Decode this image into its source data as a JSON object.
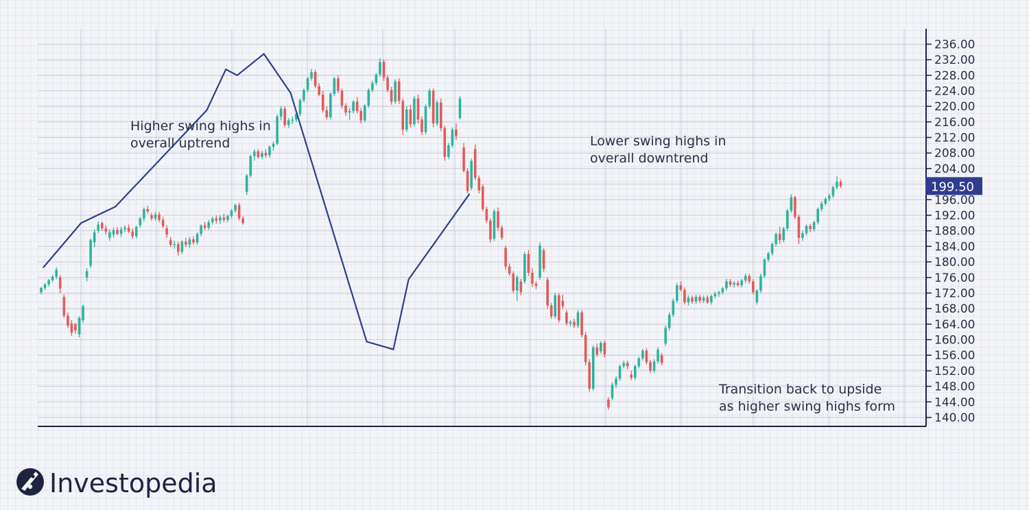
{
  "chart_data": {
    "type": "candlestick",
    "y_axis": {
      "range": [
        137,
        239
      ],
      "ticks": [
        "236.00",
        "232.00",
        "228.00",
        "224.00",
        "220.00",
        "216.00",
        "212.00",
        "208.00",
        "204.00",
        "200.00",
        "196.00",
        "192.00",
        "188.00",
        "184.00",
        "180.00",
        "176.00",
        "172.00",
        "168.00",
        "164.00",
        "160.00",
        "156.00",
        "152.00",
        "148.00",
        "144.00",
        "140.00"
      ],
      "position": "right"
    },
    "grid": true,
    "colors": {
      "up": "#2fb39d",
      "down": "#e15b5b",
      "trendline": "#2e3d8f",
      "price_tag": "#2e3d8f",
      "axis": "#1f2340"
    },
    "last_price": "199.50",
    "annotations": [
      {
        "id": "uptrend",
        "lines": [
          "Higher swing highs in",
          "overall uptrend"
        ]
      },
      {
        "id": "downtrend",
        "lines": [
          "Lower swing highs in",
          "overall downtrend"
        ]
      },
      {
        "id": "transition",
        "lines": [
          "Transition back to upside",
          "as higher swing highs form"
        ]
      }
    ],
    "trendlines": [
      {
        "name": "uptrend",
        "points": [
          [
            0.5,
            178.5
          ],
          [
            10.5,
            190.0
          ],
          [
            19.5,
            194.2
          ],
          [
            43.5,
            219.0
          ],
          [
            48.5,
            229.5
          ],
          [
            51.5,
            228.0
          ],
          [
            58.5,
            233.5
          ],
          [
            65.5,
            223.5
          ],
          [
            85.5,
            159.5
          ],
          [
            92.5,
            157.5
          ],
          [
            96.5,
            175.5
          ]
        ]
      },
      {
        "name": "transition",
        "points": [
          [
            96.5,
            175.5
          ],
          [
            112.5,
            197.5
          ]
        ]
      }
    ],
    "ohlc": [
      [
        172.2,
        173.6,
        171.6,
        173.3
      ],
      [
        173.3,
        174.6,
        172.8,
        174.2
      ],
      [
        174.2,
        175.6,
        173.6,
        175.3
      ],
      [
        175.3,
        176.6,
        174.8,
        176.2
      ],
      [
        176.2,
        178.6,
        175.6,
        178.0
      ],
      [
        176.0,
        176.6,
        172.0,
        173.2
      ],
      [
        171.0,
        171.6,
        165.6,
        166.2
      ],
      [
        166.2,
        167.0,
        163.0,
        163.6
      ],
      [
        164.2,
        165.0,
        161.0,
        161.8
      ],
      [
        164.0,
        164.4,
        161.6,
        162.4
      ],
      [
        161.4,
        166.0,
        160.6,
        165.6
      ],
      [
        165.0,
        169.0,
        164.4,
        168.6
      ],
      [
        176.0,
        178.4,
        175.0,
        177.6
      ],
      [
        179.0,
        186.0,
        178.4,
        185.6
      ],
      [
        185.0,
        188.4,
        183.8,
        187.6
      ],
      [
        188.0,
        190.4,
        187.4,
        189.6
      ],
      [
        190.0,
        190.4,
        188.0,
        188.6
      ],
      [
        188.6,
        189.4,
        187.0,
        187.8
      ],
      [
        186.2,
        188.4,
        185.4,
        187.6
      ],
      [
        187.0,
        188.8,
        186.2,
        188.2
      ],
      [
        188.2,
        189.0,
        186.8,
        187.2
      ],
      [
        187.2,
        189.0,
        186.4,
        188.4
      ],
      [
        188.4,
        189.4,
        187.6,
        188.8
      ],
      [
        188.8,
        189.6,
        187.4,
        187.8
      ],
      [
        187.8,
        188.6,
        186.0,
        186.6
      ],
      [
        186.6,
        189.4,
        186.0,
        189.0
      ],
      [
        189.4,
        191.6,
        188.8,
        191.2
      ],
      [
        191.2,
        194.0,
        190.4,
        193.6
      ],
      [
        193.6,
        194.4,
        192.4,
        193.0
      ],
      [
        192.0,
        192.6,
        190.6,
        191.2
      ],
      [
        191.2,
        192.8,
        190.6,
        192.2
      ],
      [
        192.2,
        192.8,
        190.2,
        190.8
      ],
      [
        190.8,
        191.6,
        188.6,
        189.2
      ],
      [
        188.6,
        189.4,
        186.2,
        187.0
      ],
      [
        185.6,
        186.4,
        183.8,
        184.4
      ],
      [
        184.4,
        185.4,
        183.4,
        184.6
      ],
      [
        184.6,
        185.2,
        181.6,
        182.6
      ],
      [
        182.6,
        185.6,
        182.0,
        185.2
      ],
      [
        185.2,
        186.2,
        183.8,
        184.4
      ],
      [
        184.4,
        186.4,
        183.6,
        185.8
      ],
      [
        185.8,
        186.6,
        184.4,
        185.0
      ],
      [
        185.0,
        187.6,
        184.4,
        187.2
      ],
      [
        187.2,
        189.6,
        186.6,
        189.4
      ],
      [
        189.4,
        190.2,
        188.2,
        188.8
      ],
      [
        188.8,
        190.8,
        188.2,
        190.2
      ],
      [
        190.2,
        191.6,
        189.6,
        191.2
      ],
      [
        191.2,
        192.0,
        189.8,
        190.6
      ],
      [
        190.6,
        192.0,
        189.8,
        191.4
      ],
      [
        191.4,
        192.4,
        190.2,
        190.8
      ],
      [
        190.8,
        192.2,
        190.2,
        191.8
      ],
      [
        191.8,
        193.6,
        191.2,
        193.2
      ],
      [
        193.2,
        195.0,
        192.6,
        194.6
      ],
      [
        194.6,
        195.2,
        190.6,
        191.2
      ],
      [
        191.2,
        191.8,
        189.6,
        190.0
      ],
      [
        198.0,
        202.6,
        197.2,
        202.2
      ],
      [
        202.2,
        207.6,
        201.6,
        207.2
      ],
      [
        207.2,
        209.0,
        206.0,
        208.4
      ],
      [
        208.4,
        209.0,
        206.6,
        207.0
      ],
      [
        207.0,
        208.6,
        206.4,
        208.0
      ],
      [
        208.0,
        209.0,
        206.8,
        207.4
      ],
      [
        207.4,
        210.0,
        206.8,
        209.6
      ],
      [
        209.6,
        211.0,
        208.6,
        210.4
      ],
      [
        210.4,
        218.0,
        210.0,
        217.4
      ],
      [
        217.4,
        220.0,
        216.4,
        219.4
      ],
      [
        219.4,
        220.0,
        214.6,
        215.2
      ],
      [
        215.2,
        217.0,
        214.4,
        216.4
      ],
      [
        216.4,
        217.4,
        215.4,
        216.6
      ],
      [
        216.6,
        218.6,
        216.0,
        218.0
      ],
      [
        218.0,
        222.0,
        217.4,
        221.6
      ],
      [
        221.6,
        224.6,
        221.0,
        224.2
      ],
      [
        224.2,
        227.6,
        223.6,
        227.2
      ],
      [
        227.2,
        229.6,
        226.6,
        228.8
      ],
      [
        228.8,
        229.4,
        224.6,
        225.2
      ],
      [
        225.2,
        226.0,
        222.6,
        223.0
      ],
      [
        223.0,
        224.0,
        218.4,
        219.0
      ],
      [
        219.0,
        220.0,
        216.6,
        217.2
      ],
      [
        217.2,
        223.6,
        216.6,
        223.2
      ],
      [
        223.2,
        227.6,
        222.6,
        227.2
      ],
      [
        227.2,
        228.0,
        223.4,
        224.0
      ],
      [
        224.0,
        224.6,
        219.4,
        220.2
      ],
      [
        220.2,
        220.8,
        217.6,
        218.4
      ],
      [
        218.4,
        219.6,
        216.4,
        218.8
      ],
      [
        218.8,
        221.6,
        218.2,
        221.2
      ],
      [
        221.2,
        222.4,
        218.2,
        218.8
      ],
      [
        218.8,
        219.6,
        215.6,
        216.4
      ],
      [
        216.4,
        220.6,
        216.0,
        220.2
      ],
      [
        220.2,
        224.6,
        219.6,
        224.2
      ],
      [
        224.2,
        226.6,
        223.6,
        226.0
      ],
      [
        226.0,
        228.6,
        225.4,
        228.2
      ],
      [
        228.2,
        232.4,
        227.6,
        231.4
      ],
      [
        231.4,
        232.0,
        226.6,
        227.4
      ],
      [
        227.4,
        228.0,
        223.6,
        224.2
      ],
      [
        224.2,
        225.0,
        220.4,
        221.2
      ],
      [
        221.2,
        227.0,
        220.6,
        226.4
      ],
      [
        226.4,
        227.2,
        220.6,
        221.4
      ],
      [
        221.4,
        222.0,
        212.6,
        214.0
      ],
      [
        214.0,
        220.0,
        213.4,
        219.2
      ],
      [
        219.2,
        220.4,
        214.6,
        215.4
      ],
      [
        215.4,
        222.6,
        214.8,
        222.0
      ],
      [
        222.0,
        223.0,
        215.6,
        216.6
      ],
      [
        216.6,
        217.4,
        212.6,
        213.4
      ],
      [
        213.4,
        220.6,
        212.8,
        220.0
      ],
      [
        220.0,
        224.6,
        219.4,
        224.0
      ],
      [
        224.0,
        224.6,
        214.6,
        215.6
      ],
      [
        215.6,
        221.6,
        215.0,
        221.0
      ],
      [
        221.0,
        222.0,
        213.6,
        214.4
      ],
      [
        214.4,
        215.0,
        206.0,
        207.0
      ],
      [
        207.0,
        210.6,
        206.4,
        210.0
      ],
      [
        210.0,
        214.6,
        209.4,
        214.0
      ],
      [
        214.0,
        215.6,
        211.4,
        212.4
      ],
      [
        217.0,
        222.6,
        216.6,
        222.0
      ],
      [
        209.4,
        210.6,
        203.0,
        203.4
      ],
      [
        203.4,
        204.0,
        197.6,
        198.2
      ],
      [
        199.0,
        206.6,
        198.4,
        206.0
      ],
      [
        209.0,
        210.2,
        201.0,
        201.6
      ],
      [
        201.6,
        202.2,
        197.6,
        198.4
      ],
      [
        199.4,
        200.0,
        193.0,
        193.6
      ],
      [
        193.6,
        194.2,
        190.0,
        190.6
      ],
      [
        190.6,
        191.2,
        185.0,
        185.8
      ],
      [
        186.0,
        193.6,
        185.4,
        193.0
      ],
      [
        193.0,
        194.0,
        188.0,
        188.8
      ],
      [
        188.8,
        189.4,
        185.6,
        186.2
      ],
      [
        183.6,
        184.2,
        178.0,
        178.8
      ],
      [
        178.8,
        179.6,
        176.4,
        177.0
      ],
      [
        177.0,
        177.6,
        172.0,
        172.6
      ],
      [
        172.6,
        176.6,
        170.0,
        176.0
      ],
      [
        175.0,
        175.6,
        171.4,
        172.2
      ],
      [
        175.0,
        182.6,
        174.4,
        182.0
      ],
      [
        182.0,
        183.0,
        176.4,
        177.2
      ],
      [
        177.2,
        178.4,
        173.6,
        174.4
      ],
      [
        174.4,
        175.0,
        173.0,
        173.8
      ],
      [
        176.0,
        185.0,
        175.4,
        184.2
      ],
      [
        183.0,
        183.6,
        177.4,
        178.2
      ],
      [
        175.4,
        176.0,
        168.0,
        168.8
      ],
      [
        168.8,
        169.4,
        165.4,
        166.0
      ],
      [
        166.0,
        172.0,
        165.4,
        171.4
      ],
      [
        171.4,
        172.0,
        164.4,
        165.0
      ],
      [
        170.0,
        171.6,
        168.0,
        168.6
      ],
      [
        167.0,
        167.6,
        163.6,
        164.2
      ],
      [
        164.2,
        165.0,
        163.4,
        164.6
      ],
      [
        164.6,
        165.4,
        163.0,
        163.6
      ],
      [
        163.6,
        167.6,
        163.0,
        167.0
      ],
      [
        167.0,
        167.6,
        160.6,
        161.2
      ],
      [
        161.2,
        162.0,
        153.4,
        154.2
      ],
      [
        154.2,
        155.0,
        146.6,
        147.4
      ],
      [
        147.4,
        158.6,
        146.8,
        158.0
      ],
      [
        158.0,
        159.0,
        155.6,
        156.2
      ],
      [
        157.0,
        159.6,
        156.4,
        159.2
      ],
      [
        159.2,
        159.8,
        155.4,
        156.2
      ],
      [
        144.6,
        145.2,
        142.0,
        142.6
      ],
      [
        145.0,
        149.0,
        144.4,
        148.4
      ],
      [
        148.4,
        150.6,
        147.6,
        150.0
      ],
      [
        150.0,
        153.6,
        149.4,
        153.2
      ],
      [
        153.2,
        154.6,
        152.6,
        154.0
      ],
      [
        154.0,
        154.6,
        152.4,
        153.2
      ],
      [
        151.0,
        152.0,
        149.6,
        150.2
      ],
      [
        150.2,
        153.6,
        149.6,
        153.2
      ],
      [
        153.2,
        155.6,
        152.6,
        155.2
      ],
      [
        155.2,
        157.6,
        154.6,
        157.2
      ],
      [
        157.2,
        157.8,
        153.6,
        154.2
      ],
      [
        154.2,
        154.8,
        151.4,
        152.0
      ],
      [
        152.0,
        155.0,
        151.4,
        154.4
      ],
      [
        154.4,
        158.0,
        153.8,
        157.4
      ],
      [
        156.0,
        156.6,
        153.4,
        154.0
      ],
      [
        159.0,
        163.6,
        158.4,
        163.0
      ],
      [
        163.0,
        167.0,
        162.4,
        166.4
      ],
      [
        166.4,
        170.6,
        165.8,
        170.0
      ],
      [
        170.0,
        174.6,
        169.4,
        174.0
      ],
      [
        174.0,
        175.0,
        172.4,
        172.8
      ],
      [
        172.8,
        173.4,
        169.0,
        169.6
      ],
      [
        169.6,
        171.4,
        168.8,
        170.8
      ],
      [
        170.8,
        171.4,
        169.2,
        169.8
      ],
      [
        169.8,
        171.6,
        169.2,
        171.0
      ],
      [
        171.0,
        171.6,
        169.4,
        170.0
      ],
      [
        170.0,
        171.4,
        169.4,
        170.8
      ],
      [
        170.8,
        171.4,
        169.2,
        169.6
      ],
      [
        169.6,
        171.6,
        169.0,
        171.2
      ],
      [
        171.2,
        172.4,
        170.6,
        171.8
      ],
      [
        171.8,
        172.6,
        171.0,
        172.2
      ],
      [
        172.2,
        173.6,
        171.6,
        173.2
      ],
      [
        173.2,
        175.6,
        172.6,
        175.0
      ],
      [
        175.0,
        175.6,
        173.6,
        174.2
      ],
      [
        174.2,
        175.0,
        173.4,
        174.6
      ],
      [
        174.6,
        175.2,
        173.6,
        174.0
      ],
      [
        174.0,
        175.6,
        173.4,
        175.2
      ],
      [
        175.2,
        177.0,
        174.6,
        176.4
      ],
      [
        176.4,
        177.0,
        174.4,
        175.0
      ],
      [
        175.0,
        175.6,
        171.6,
        172.2
      ],
      [
        169.6,
        173.0,
        169.0,
        172.6
      ],
      [
        172.6,
        177.0,
        172.0,
        176.4
      ],
      [
        176.4,
        181.0,
        175.8,
        180.6
      ],
      [
        180.6,
        182.6,
        180.0,
        182.2
      ],
      [
        182.2,
        185.0,
        181.6,
        184.6
      ],
      [
        184.6,
        187.6,
        184.0,
        187.2
      ],
      [
        187.2,
        189.0,
        184.6,
        185.6
      ],
      [
        185.6,
        189.0,
        185.0,
        188.6
      ],
      [
        188.6,
        193.6,
        188.0,
        193.2
      ],
      [
        193.2,
        197.4,
        192.6,
        196.6
      ],
      [
        196.6,
        197.0,
        191.0,
        191.6
      ],
      [
        191.6,
        192.2,
        184.6,
        186.2
      ],
      [
        186.2,
        188.0,
        185.4,
        187.4
      ],
      [
        187.4,
        189.6,
        186.8,
        189.2
      ],
      [
        189.2,
        189.8,
        187.6,
        188.4
      ],
      [
        188.4,
        190.6,
        187.8,
        190.2
      ],
      [
        190.2,
        194.0,
        189.6,
        193.6
      ],
      [
        193.6,
        195.6,
        193.0,
        195.0
      ],
      [
        195.0,
        196.6,
        194.4,
        196.2
      ],
      [
        196.2,
        197.6,
        195.6,
        197.0
      ],
      [
        197.0,
        199.6,
        196.4,
        199.2
      ],
      [
        199.2,
        202.0,
        198.6,
        200.6
      ],
      [
        200.6,
        201.2,
        199.0,
        199.5
      ]
    ]
  },
  "logo": {
    "name": "Investopedia"
  }
}
